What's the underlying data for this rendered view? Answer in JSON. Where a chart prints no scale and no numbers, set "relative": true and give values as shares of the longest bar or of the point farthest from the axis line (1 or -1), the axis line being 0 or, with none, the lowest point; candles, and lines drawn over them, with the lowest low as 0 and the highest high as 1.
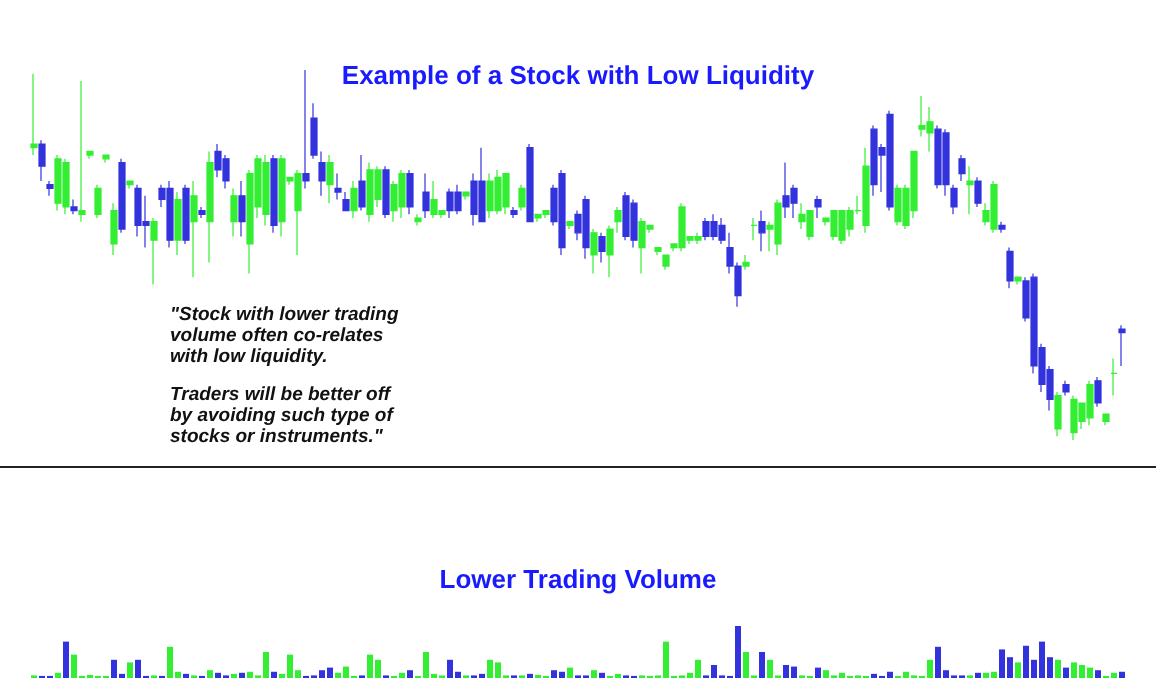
{
  "chart_data": [
    {
      "type": "candlestick",
      "title": "Example of a Stock with Low Liquidity",
      "relative": true,
      "colors": [
        "#33ee33",
        "#3333dd",
        "#3333dd",
        "#33ee33",
        "#33ee33",
        "#3333dd",
        "#33ee33",
        "#33ee33",
        "#33ee33",
        "#33ee33",
        "#33ee33",
        "#3333dd",
        "#33ee33",
        "#3333dd",
        "#3333dd",
        "#33ee33",
        "#3333dd",
        "#3333dd",
        "#33ee33",
        "#3333dd",
        "#33ee33",
        "#3333dd",
        "#33ee33",
        "#3333dd",
        "#3333dd",
        "#33ee33",
        "#3333dd",
        "#33ee33",
        "#33ee33",
        "#33ee33",
        "#3333dd",
        "#33ee33",
        "#33ee33",
        "#33ee33",
        "#3333dd",
        "#3333dd",
        "#3333dd",
        "#33ee33",
        "#3333dd",
        "#3333dd",
        "#33ee33",
        "#3333dd",
        "#33ee33",
        "#33ee33",
        "#3333dd",
        "#33ee33",
        "#33ee33",
        "#3333dd",
        "#33ee33",
        "#3333dd",
        "#33ee33",
        "#33ee33",
        "#3333dd",
        "#3333dd",
        "#33ee33",
        "#3333dd",
        "#3333dd",
        "#33ee33",
        "#33ee33",
        "#33ee33",
        "#3333dd",
        "#33ee33",
        "#3333dd",
        "#33ee33",
        "#33ee33",
        "#3333dd",
        "#3333dd",
        "#33ee33",
        "#3333dd",
        "#3333dd",
        "#33ee33",
        "#3333dd",
        "#33ee33",
        "#33ee33",
        "#3333dd",
        "#3333dd",
        "#33ee33",
        "#33ee33",
        "#33ee33",
        "#33ee33",
        "#33ee33",
        "#33ee33",
        "#33ee33",
        "#33ee33",
        "#3333dd",
        "#3333dd",
        "#3333dd",
        "#3333dd",
        "#3333dd",
        "#33ee33",
        "#33ee33",
        "#3333dd",
        "#33ee33",
        "#33ee33",
        "#3333dd",
        "#3333dd",
        "#33ee33",
        "#33ee33",
        "#3333dd",
        "#33ee33",
        "#33ee33",
        "#33ee33",
        "#33ee33",
        "#33ee33",
        "#33ee33",
        "#3333dd",
        "#3333dd",
        "#3333dd",
        "#33ee33",
        "#33ee33",
        "#33ee33",
        "#33ee33",
        "#33ee33",
        "#3333dd",
        "#3333dd",
        "#3333dd",
        "#3333dd",
        "#33ee33",
        "#3333dd",
        "#33ee33",
        "#33ee33",
        "#3333dd",
        "#3333dd",
        "#33ee33",
        "#3333dd",
        "#3333dd",
        "#3333dd",
        "#3333dd",
        "#33ee33",
        "#3333dd",
        "#33ee33",
        "#33ee33",
        "#33ee33",
        "#3333dd",
        "#33ee33",
        "#33ee33",
        "#3333dd"
      ],
      "annotations": [
        "\"Stock with lower trading\nvolume often co-relates\nwith low liquidity.",
        "Traders will be better off\nby avoiding such type of\nstocks or instruments.\""
      ],
      "categories": [
        null,
        null,
        null,
        null,
        null,
        null,
        null,
        null,
        null,
        null,
        null,
        null,
        null,
        null,
        null,
        null,
        null,
        null,
        null,
        null,
        null,
        null,
        null,
        null,
        null,
        null,
        null,
        null,
        null,
        null,
        null,
        null,
        null,
        null,
        null,
        null,
        null,
        null,
        null,
        null,
        null,
        null,
        null,
        null,
        null,
        null,
        null,
        null,
        null,
        null,
        null,
        null,
        null,
        null,
        null,
        null,
        null,
        null,
        null,
        null,
        null,
        null,
        null,
        null,
        null,
        null,
        null,
        null,
        null,
        null,
        null,
        null,
        null,
        null,
        null,
        null,
        null,
        null,
        null,
        null,
        null,
        null,
        null,
        null,
        null,
        null,
        null,
        null,
        null,
        null,
        null,
        null,
        null,
        null,
        null,
        null,
        null,
        null,
        null,
        null,
        null,
        null,
        null,
        null,
        null,
        null,
        null,
        null,
        null,
        null,
        null,
        null,
        null,
        null,
        null,
        null,
        null,
        null,
        null,
        null,
        null,
        null,
        null,
        null,
        null,
        null,
        null,
        null,
        null,
        null,
        null,
        null,
        null,
        null,
        null,
        null,
        null
      ],
      "ohlc": [
        [
          0.79,
          0.99,
          0.77,
          0.8
        ],
        [
          0.8,
          0.81,
          0.7,
          0.74
        ],
        [
          0.69,
          0.7,
          0.66,
          0.68
        ],
        [
          0.64,
          0.77,
          0.62,
          0.76
        ],
        [
          0.63,
          0.76,
          0.61,
          0.75
        ],
        [
          0.63,
          0.65,
          0.61,
          0.62
        ],
        [
          0.61,
          0.97,
          0.59,
          0.62
        ],
        [
          0.77,
          0.78,
          0.76,
          0.78
        ],
        [
          0.61,
          0.69,
          0.6,
          0.68
        ],
        [
          0.76,
          0.77,
          0.75,
          0.77
        ],
        [
          0.53,
          0.64,
          0.5,
          0.62
        ],
        [
          0.75,
          0.76,
          0.56,
          0.57
        ],
        [
          0.69,
          0.7,
          0.68,
          0.7
        ],
        [
          0.68,
          0.69,
          0.55,
          0.58
        ],
        [
          0.59,
          0.66,
          0.52,
          0.58
        ],
        [
          0.54,
          0.6,
          0.42,
          0.59
        ],
        [
          0.68,
          0.69,
          0.63,
          0.65
        ],
        [
          0.68,
          0.7,
          0.52,
          0.54
        ],
        [
          0.54,
          0.67,
          0.5,
          0.65
        ],
        [
          0.68,
          0.69,
          0.53,
          0.54
        ],
        [
          0.59,
          0.7,
          0.44,
          0.66
        ],
        [
          0.62,
          0.63,
          0.6,
          0.61
        ],
        [
          0.59,
          0.78,
          0.48,
          0.75
        ],
        [
          0.78,
          0.8,
          0.71,
          0.73
        ],
        [
          0.76,
          0.77,
          0.68,
          0.7
        ],
        [
          0.59,
          0.68,
          0.55,
          0.66
        ],
        [
          0.66,
          0.7,
          0.55,
          0.59
        ],
        [
          0.53,
          0.73,
          0.45,
          0.72
        ],
        [
          0.63,
          0.77,
          0.6,
          0.76
        ],
        [
          0.61,
          0.77,
          0.58,
          0.75
        ],
        [
          0.76,
          0.77,
          0.56,
          0.58
        ],
        [
          0.59,
          0.77,
          0.55,
          0.76
        ],
        [
          0.7,
          0.71,
          0.69,
          0.71
        ],
        [
          0.62,
          0.73,
          0.5,
          0.72
        ],
        [
          0.72,
          1.0,
          0.68,
          0.7
        ],
        [
          0.87,
          0.91,
          0.76,
          0.77
        ],
        [
          0.75,
          0.78,
          0.66,
          0.7
        ],
        [
          0.69,
          0.77,
          0.64,
          0.75
        ],
        [
          0.68,
          0.72,
          0.65,
          0.67
        ],
        [
          0.65,
          0.67,
          0.62,
          0.62
        ],
        [
          0.62,
          0.7,
          0.6,
          0.68
        ],
        [
          0.7,
          0.77,
          0.62,
          0.63
        ],
        [
          0.61,
          0.75,
          0.59,
          0.73
        ],
        [
          0.65,
          0.74,
          0.63,
          0.73
        ],
        [
          0.73,
          0.74,
          0.6,
          0.61
        ],
        [
          0.62,
          0.7,
          0.59,
          0.69
        ],
        [
          0.63,
          0.73,
          0.6,
          0.72
        ],
        [
          0.72,
          0.73,
          0.61,
          0.63
        ],
        [
          0.59,
          0.61,
          0.58,
          0.6
        ],
        [
          0.67,
          0.72,
          0.6,
          0.62
        ],
        [
          0.61,
          0.7,
          0.6,
          0.65
        ],
        [
          0.61,
          0.62,
          0.6,
          0.62
        ],
        [
          0.67,
          0.68,
          0.6,
          0.62
        ],
        [
          0.67,
          0.69,
          0.61,
          0.62
        ],
        [
          0.66,
          0.67,
          0.65,
          0.67
        ],
        [
          0.7,
          0.72,
          0.58,
          0.61
        ],
        [
          0.7,
          0.79,
          0.59,
          0.59
        ],
        [
          0.62,
          0.72,
          0.6,
          0.7
        ],
        [
          0.62,
          0.73,
          0.61,
          0.71
        ],
        [
          0.63,
          0.72,
          0.61,
          0.72
        ],
        [
          0.62,
          0.63,
          0.6,
          0.61
        ],
        [
          0.63,
          0.69,
          0.62,
          0.68
        ],
        [
          0.79,
          0.8,
          0.59,
          0.59
        ],
        [
          0.6,
          0.61,
          0.59,
          0.61
        ],
        [
          0.61,
          0.62,
          0.6,
          0.62
        ],
        [
          0.68,
          0.69,
          0.58,
          0.59
        ],
        [
          0.72,
          0.73,
          0.5,
          0.52
        ],
        [
          0.58,
          0.59,
          0.57,
          0.59
        ],
        [
          0.61,
          0.62,
          0.54,
          0.56
        ],
        [
          0.65,
          0.66,
          0.49,
          0.52
        ],
        [
          0.5,
          0.57,
          0.45,
          0.56
        ],
        [
          0.55,
          0.56,
          0.48,
          0.51
        ],
        [
          0.5,
          0.58,
          0.44,
          0.57
        ],
        [
          0.59,
          0.63,
          0.56,
          0.62
        ],
        [
          0.66,
          0.67,
          0.54,
          0.55
        ],
        [
          0.64,
          0.65,
          0.52,
          0.54
        ],
        [
          0.52,
          0.6,
          0.45,
          0.59
        ],
        [
          0.57,
          0.58,
          0.56,
          0.58
        ],
        [
          0.51,
          0.52,
          0.5,
          0.52
        ],
        [
          0.47,
          0.5,
          0.46,
          0.5
        ],
        [
          0.52,
          0.53,
          0.51,
          0.53
        ],
        [
          0.52,
          0.64,
          0.51,
          0.63
        ],
        [
          0.54,
          0.55,
          0.53,
          0.55
        ],
        [
          0.54,
          0.56,
          0.53,
          0.55
        ],
        [
          0.59,
          0.6,
          0.54,
          0.55
        ],
        [
          0.59,
          0.61,
          0.54,
          0.55
        ],
        [
          0.58,
          0.6,
          0.53,
          0.54
        ],
        [
          0.52,
          0.56,
          0.45,
          0.47
        ],
        [
          0.47,
          0.48,
          0.36,
          0.39
        ],
        [
          0.47,
          0.5,
          0.46,
          0.48
        ],
        [
          0.58,
          0.6,
          0.54,
          0.58
        ],
        [
          0.59,
          0.62,
          0.51,
          0.56
        ],
        [
          0.57,
          0.59,
          0.51,
          0.58
        ],
        [
          0.53,
          0.65,
          0.5,
          0.64
        ],
        [
          0.66,
          0.75,
          0.6,
          0.63
        ],
        [
          0.68,
          0.69,
          0.6,
          0.64
        ],
        [
          0.59,
          0.64,
          0.57,
          0.61
        ],
        [
          0.55,
          0.62,
          0.54,
          0.62
        ],
        [
          0.65,
          0.66,
          0.6,
          0.63
        ],
        [
          0.59,
          0.6,
          0.58,
          0.6
        ],
        [
          0.55,
          0.62,
          0.54,
          0.62
        ],
        [
          0.54,
          0.62,
          0.53,
          0.62
        ],
        [
          0.57,
          0.63,
          0.55,
          0.62
        ],
        [
          0.62,
          0.66,
          0.61,
          0.62
        ],
        [
          0.58,
          0.79,
          0.56,
          0.74
        ],
        [
          0.84,
          0.85,
          0.66,
          0.69
        ],
        [
          0.79,
          0.8,
          0.67,
          0.77
        ],
        [
          0.88,
          0.89,
          0.62,
          0.63
        ],
        [
          0.59,
          0.69,
          0.58,
          0.68
        ],
        [
          0.58,
          0.69,
          0.57,
          0.68
        ],
        [
          0.62,
          0.78,
          0.6,
          0.78
        ],
        [
          0.84,
          0.93,
          0.82,
          0.85
        ],
        [
          0.83,
          0.9,
          0.78,
          0.86
        ],
        [
          0.84,
          0.85,
          0.68,
          0.69
        ],
        [
          0.83,
          0.84,
          0.66,
          0.69
        ],
        [
          0.68,
          0.69,
          0.61,
          0.63
        ],
        [
          0.76,
          0.77,
          0.7,
          0.72
        ],
        [
          0.69,
          0.74,
          0.61,
          0.7
        ],
        [
          0.7,
          0.71,
          0.63,
          0.64
        ],
        [
          0.59,
          0.64,
          0.58,
          0.62
        ],
        [
          0.57,
          0.7,
          0.56,
          0.69
        ],
        [
          0.58,
          0.59,
          0.56,
          0.57
        ],
        [
          0.51,
          0.52,
          0.41,
          0.43
        ],
        [
          0.43,
          0.44,
          0.42,
          0.44
        ],
        [
          0.43,
          0.44,
          0.32,
          0.33
        ],
        [
          0.44,
          0.45,
          0.18,
          0.2
        ],
        [
          0.25,
          0.26,
          0.13,
          0.15
        ],
        [
          0.19,
          0.2,
          0.08,
          0.11
        ],
        [
          0.03,
          0.13,
          0.01,
          0.12
        ],
        [
          0.15,
          0.16,
          0.12,
          0.13
        ],
        [
          0.02,
          0.12,
          0,
          0.11
        ],
        [
          0.05,
          0.1,
          0.03,
          0.1
        ],
        [
          0.06,
          0.16,
          0.04,
          0.15
        ],
        [
          0.16,
          0.17,
          0.09,
          0.1
        ],
        [
          0.05,
          0.07,
          0.04,
          0.07
        ],
        [
          0.18,
          0.22,
          0.12,
          0.18
        ],
        [
          0.3,
          0.31,
          0.2,
          0.29
        ]
      ]
    },
    {
      "type": "bar",
      "title": "Lower Trading Volume",
      "relative": true,
      "categories": [
        null,
        null,
        null,
        null,
        null,
        null,
        null,
        null,
        null,
        null,
        null,
        null,
        null,
        null,
        null,
        null,
        null,
        null,
        null,
        null,
        null,
        null,
        null,
        null,
        null,
        null,
        null,
        null,
        null,
        null,
        null,
        null,
        null,
        null,
        null,
        null,
        null,
        null,
        null,
        null,
        null,
        null,
        null,
        null,
        null,
        null,
        null,
        null,
        null,
        null,
        null,
        null,
        null,
        null,
        null,
        null,
        null,
        null,
        null,
        null,
        null,
        null,
        null,
        null,
        null,
        null,
        null,
        null,
        null,
        null,
        null,
        null,
        null,
        null,
        null,
        null,
        null,
        null,
        null,
        null,
        null,
        null,
        null,
        null,
        null,
        null,
        null,
        null,
        null,
        null,
        null,
        null,
        null,
        null,
        null,
        null,
        null,
        null,
        null,
        null,
        null,
        null,
        null,
        null,
        null,
        null,
        null,
        null,
        null,
        null,
        null,
        null,
        null,
        null,
        null,
        null,
        null,
        null,
        null,
        null,
        null,
        null,
        null,
        null,
        null,
        null,
        null,
        null,
        null,
        null,
        null,
        null,
        null,
        null,
        null,
        null,
        null
      ],
      "values": [
        0.05,
        0.04,
        0.04,
        0.1,
        0.7,
        0.45,
        0.04,
        0.06,
        0.04,
        0.04,
        0.35,
        0.08,
        0.3,
        0.35,
        0.04,
        0.05,
        0.04,
        0.6,
        0.12,
        0.08,
        0.05,
        0.04,
        0.15,
        0.1,
        0.05,
        0.08,
        0.1,
        0.12,
        0.05,
        0.5,
        0.12,
        0.08,
        0.45,
        0.15,
        0.04,
        0.05,
        0.15,
        0.2,
        0.1,
        0.22,
        0.04,
        0.05,
        0.45,
        0.35,
        0.05,
        0.04,
        0.1,
        0.15,
        0.04,
        0.5,
        0.08,
        0.05,
        0.35,
        0.12,
        0.05,
        0.05,
        0.08,
        0.35,
        0.3,
        0.05,
        0.05,
        0.05,
        0.08,
        0.06,
        0.04,
        0.15,
        0.12,
        0.2,
        0.05,
        0.05,
        0.15,
        0.1,
        0.04,
        0.08,
        0.05,
        0.04,
        0.05,
        0.04,
        0.05,
        0.7,
        0.04,
        0.05,
        0.1,
        0.35,
        0.05,
        0.25,
        0.05,
        0.04,
        1.0,
        0.5,
        0.05,
        0.5,
        0.35,
        0.05,
        0.25,
        0.22,
        0.05,
        0.04,
        0.2,
        0.15,
        0.05,
        0.1,
        0.04,
        0.05,
        0.04,
        0.08,
        0.04,
        0.12,
        0.04,
        0.12,
        0.05,
        0.04,
        0.35,
        0.6,
        0.15,
        0.05,
        0.05,
        0.05,
        0.1,
        0.1,
        0.12,
        0.55,
        0.4,
        0.3,
        0.62,
        0.35,
        0.7,
        0.4,
        0.35,
        0.2,
        0.3,
        0.25,
        0.2,
        0.15,
        0.04,
        0.1,
        0.12
      ],
      "colors": [
        "#33ee33",
        "#3333dd",
        "#3333dd",
        "#33ee33",
        "#3333dd",
        "#33ee33",
        "#33ee33",
        "#33ee33",
        "#33ee33",
        "#33ee33",
        "#3333dd",
        "#3333dd",
        "#33ee33",
        "#3333dd",
        "#3333dd",
        "#33ee33",
        "#3333dd",
        "#33ee33",
        "#33ee33",
        "#3333dd",
        "#33ee33",
        "#3333dd",
        "#33ee33",
        "#3333dd",
        "#3333dd",
        "#33ee33",
        "#3333dd",
        "#33ee33",
        "#33ee33",
        "#33ee33",
        "#3333dd",
        "#33ee33",
        "#33ee33",
        "#33ee33",
        "#3333dd",
        "#3333dd",
        "#3333dd",
        "#3333dd",
        "#33ee33",
        "#33ee33",
        "#33ee33",
        "#3333dd",
        "#33ee33",
        "#33ee33",
        "#3333dd",
        "#33ee33",
        "#33ee33",
        "#3333dd",
        "#33ee33",
        "#33ee33",
        "#33ee33",
        "#33ee33",
        "#3333dd",
        "#3333dd",
        "#33ee33",
        "#3333dd",
        "#3333dd",
        "#33ee33",
        "#33ee33",
        "#33ee33",
        "#3333dd",
        "#33ee33",
        "#3333dd",
        "#33ee33",
        "#33ee33",
        "#3333dd",
        "#3333dd",
        "#33ee33",
        "#3333dd",
        "#3333dd",
        "#33ee33",
        "#3333dd",
        "#33ee33",
        "#33ee33",
        "#3333dd",
        "#3333dd",
        "#33ee33",
        "#33ee33",
        "#33ee33",
        "#33ee33",
        "#33ee33",
        "#33ee33",
        "#33ee33",
        "#33ee33",
        "#3333dd",
        "#3333dd",
        "#3333dd",
        "#3333dd",
        "#3333dd",
        "#33ee33",
        "#33ee33",
        "#3333dd",
        "#33ee33",
        "#33ee33",
        "#3333dd",
        "#3333dd",
        "#33ee33",
        "#33ee33",
        "#3333dd",
        "#33ee33",
        "#33ee33",
        "#33ee33",
        "#33ee33",
        "#33ee33",
        "#33ee33",
        "#3333dd",
        "#3333dd",
        "#3333dd",
        "#33ee33",
        "#33ee33",
        "#33ee33",
        "#33ee33",
        "#33ee33",
        "#3333dd",
        "#3333dd",
        "#3333dd",
        "#3333dd",
        "#33ee33",
        "#3333dd",
        "#33ee33",
        "#33ee33",
        "#3333dd",
        "#3333dd",
        "#33ee33",
        "#3333dd",
        "#3333dd",
        "#3333dd",
        "#3333dd",
        "#33ee33",
        "#3333dd",
        "#33ee33",
        "#33ee33",
        "#33ee33",
        "#3333dd",
        "#33ee33",
        "#33ee33",
        "#3333dd"
      ]
    }
  ]
}
